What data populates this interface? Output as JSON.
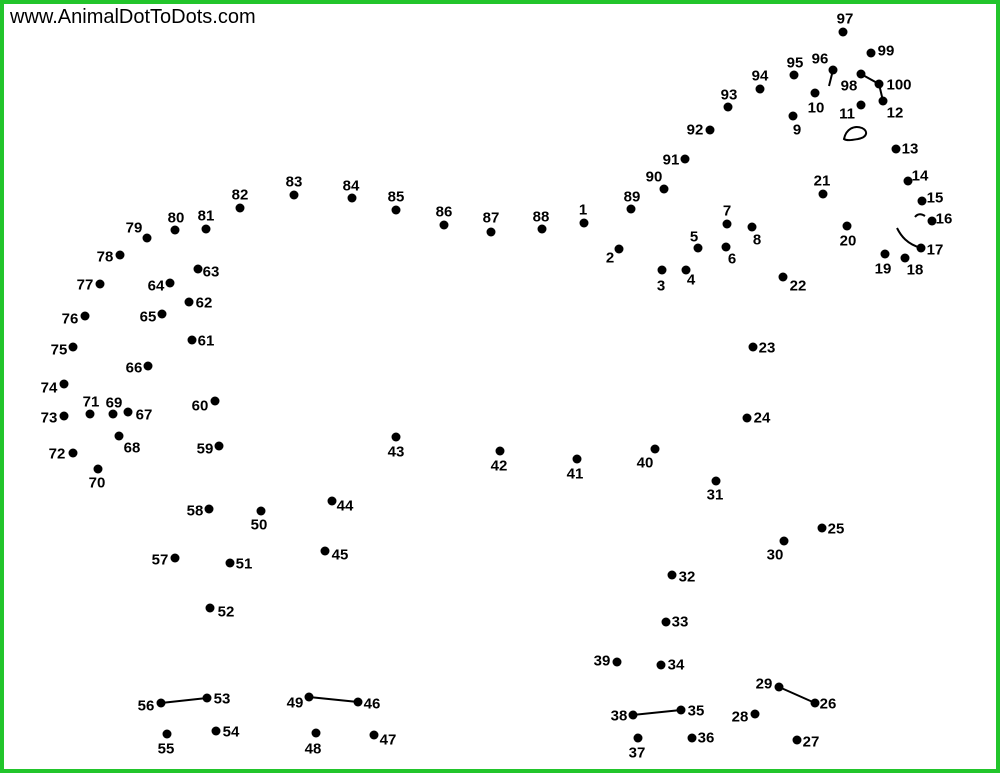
{
  "website": "www.AnimalDotToDots.com",
  "colors": {
    "border": "#22c52b",
    "dot": "#000000",
    "background": "#ffffff"
  },
  "dots": [
    {
      "n": 1,
      "label": "1"
    },
    {
      "n": 2,
      "label": "2"
    },
    {
      "n": 3,
      "label": "3"
    },
    {
      "n": 4,
      "label": "4"
    },
    {
      "n": 5,
      "label": "5"
    },
    {
      "n": 6,
      "label": "6"
    },
    {
      "n": 7,
      "label": "7"
    },
    {
      "n": 8,
      "label": "8"
    },
    {
      "n": 9,
      "label": "9"
    },
    {
      "n": 10,
      "label": "10"
    },
    {
      "n": 11,
      "label": "11"
    },
    {
      "n": 12,
      "label": "12"
    },
    {
      "n": 13,
      "label": "13"
    },
    {
      "n": 14,
      "label": "14"
    },
    {
      "n": 15,
      "label": "15"
    },
    {
      "n": 16,
      "label": "16"
    },
    {
      "n": 17,
      "label": "17"
    },
    {
      "n": 18,
      "label": "18"
    },
    {
      "n": 19,
      "label": "19"
    },
    {
      "n": 20,
      "label": "20"
    },
    {
      "n": 21,
      "label": "21"
    },
    {
      "n": 22,
      "label": "22"
    },
    {
      "n": 23,
      "label": "23"
    },
    {
      "n": 24,
      "label": "24"
    },
    {
      "n": 25,
      "label": "25"
    },
    {
      "n": 26,
      "label": "26"
    },
    {
      "n": 27,
      "label": "27"
    },
    {
      "n": 28,
      "label": "28"
    },
    {
      "n": 29,
      "label": "29"
    },
    {
      "n": 30,
      "label": "30"
    },
    {
      "n": 31,
      "label": "31"
    },
    {
      "n": 32,
      "label": "32"
    },
    {
      "n": 33,
      "label": "33"
    },
    {
      "n": 34,
      "label": "34"
    },
    {
      "n": 35,
      "label": "35"
    },
    {
      "n": 36,
      "label": "36"
    },
    {
      "n": 37,
      "label": "37"
    },
    {
      "n": 38,
      "label": "38"
    },
    {
      "n": 39,
      "label": "39"
    },
    {
      "n": 40,
      "label": "40"
    },
    {
      "n": 41,
      "label": "41"
    },
    {
      "n": 42,
      "label": "42"
    },
    {
      "n": 43,
      "label": "43"
    },
    {
      "n": 44,
      "label": "44"
    },
    {
      "n": 45,
      "label": "45"
    },
    {
      "n": 46,
      "label": "46"
    },
    {
      "n": 47,
      "label": "47"
    },
    {
      "n": 48,
      "label": "48"
    },
    {
      "n": 49,
      "label": "49"
    },
    {
      "n": 50,
      "label": "50"
    },
    {
      "n": 51,
      "label": "51"
    },
    {
      "n": 52,
      "label": "52"
    },
    {
      "n": 53,
      "label": "53"
    },
    {
      "n": 54,
      "label": "54"
    },
    {
      "n": 55,
      "label": "55"
    },
    {
      "n": 56,
      "label": "56"
    },
    {
      "n": 57,
      "label": "57"
    },
    {
      "n": 58,
      "label": "58"
    },
    {
      "n": 59,
      "label": "59"
    },
    {
      "n": 60,
      "label": "60"
    },
    {
      "n": 61,
      "label": "61"
    },
    {
      "n": 62,
      "label": "62"
    },
    {
      "n": 63,
      "label": "63"
    },
    {
      "n": 64,
      "label": "64"
    },
    {
      "n": 65,
      "label": "65"
    },
    {
      "n": 66,
      "label": "66"
    },
    {
      "n": 67,
      "label": "67"
    },
    {
      "n": 68,
      "label": "68"
    },
    {
      "n": 69,
      "label": "69"
    },
    {
      "n": 70,
      "label": "70"
    },
    {
      "n": 71,
      "label": "71"
    },
    {
      "n": 72,
      "label": "72"
    },
    {
      "n": 73,
      "label": "73"
    },
    {
      "n": 74,
      "label": "74"
    },
    {
      "n": 75,
      "label": "75"
    },
    {
      "n": 76,
      "label": "76"
    },
    {
      "n": 77,
      "label": "77"
    },
    {
      "n": 78,
      "label": "78"
    },
    {
      "n": 79,
      "label": "79"
    },
    {
      "n": 80,
      "label": "80"
    },
    {
      "n": 81,
      "label": "81"
    },
    {
      "n": 82,
      "label": "82"
    },
    {
      "n": 83,
      "label": "83"
    },
    {
      "n": 84,
      "label": "84"
    },
    {
      "n": 85,
      "label": "85"
    },
    {
      "n": 86,
      "label": "86"
    },
    {
      "n": 87,
      "label": "87"
    },
    {
      "n": 88,
      "label": "88"
    },
    {
      "n": 89,
      "label": "89"
    },
    {
      "n": 90,
      "label": "90"
    },
    {
      "n": 91,
      "label": "91"
    },
    {
      "n": 92,
      "label": "92"
    },
    {
      "n": 93,
      "label": "93"
    },
    {
      "n": 94,
      "label": "94"
    },
    {
      "n": 95,
      "label": "95"
    },
    {
      "n": 96,
      "label": "96"
    },
    {
      "n": 97,
      "label": "97"
    },
    {
      "n": 98,
      "label": "98"
    },
    {
      "n": 99,
      "label": "99"
    },
    {
      "n": 100,
      "label": "100"
    }
  ]
}
